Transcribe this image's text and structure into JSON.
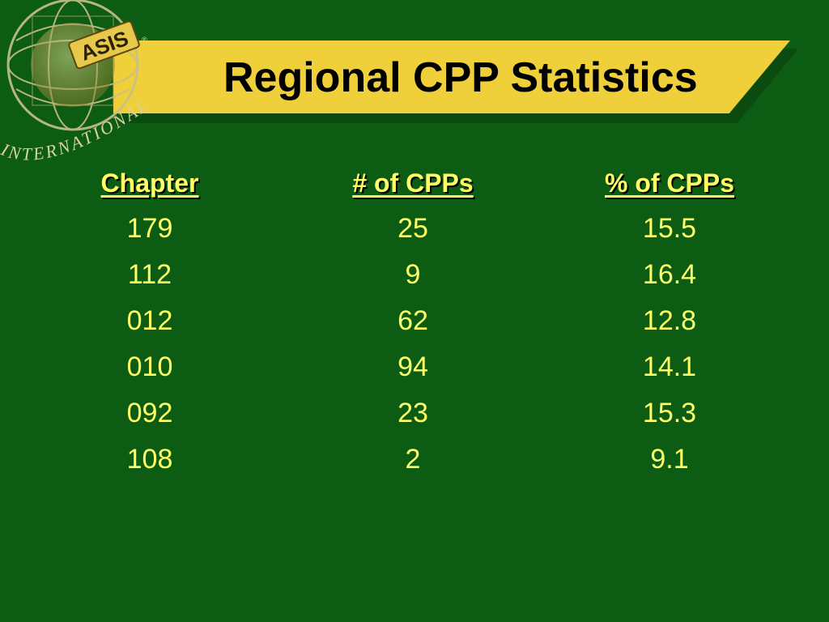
{
  "slide": {
    "title": "Regional CPP Statistics",
    "logo": {
      "text_top": "ASIS",
      "text_arc": "INTERNATIONAL",
      "registered_mark": "®"
    }
  },
  "table": {
    "headers": [
      "Chapter",
      "# of CPPs",
      "% of CPPs"
    ],
    "rows": [
      [
        "179",
        "25",
        "15.5"
      ],
      [
        "112",
        "9",
        "16.4"
      ],
      [
        "012",
        "62",
        "12.8"
      ],
      [
        "010",
        "94",
        "14.1"
      ],
      [
        "092",
        "23",
        "15.3"
      ],
      [
        "108",
        "2",
        "9.1"
      ]
    ]
  },
  "colors": {
    "background": "#0d5c14",
    "banner": "#efcf3a",
    "text": "#ffff66",
    "title_text": "#000000"
  }
}
